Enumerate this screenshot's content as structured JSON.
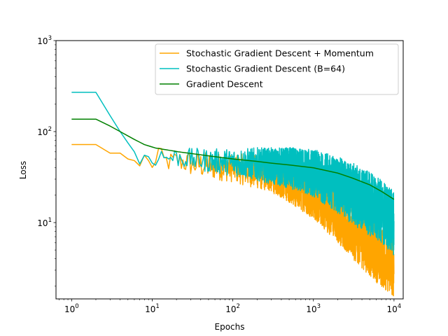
{
  "chart_data": {
    "type": "line",
    "xlabel": "Epochs",
    "ylabel": "Loss",
    "xscale": "log",
    "yscale": "log",
    "xlim": [
      0.64,
      13000
    ],
    "ylim": [
      1.45,
      1000
    ],
    "xticks": [
      {
        "value": 1,
        "base": "10",
        "exp": "0"
      },
      {
        "value": 10,
        "base": "10",
        "exp": "1"
      },
      {
        "value": 100,
        "base": "10",
        "exp": "2"
      },
      {
        "value": 1000,
        "base": "10",
        "exp": "3"
      },
      {
        "value": 10000,
        "base": "10",
        "exp": "4"
      }
    ],
    "yticks": [
      {
        "value": 10,
        "base": "10",
        "exp": "1"
      },
      {
        "value": 100,
        "base": "10",
        "exp": "2"
      },
      {
        "value": 1000,
        "base": "10",
        "exp": "3"
      }
    ],
    "grid": false,
    "legend_position": "top-right",
    "series": [
      {
        "name": "Stochastic Gradient Descent + Momentum",
        "color": "#ffa500",
        "points": [
          [
            0,
            72
          ],
          [
            1,
            72
          ],
          [
            2,
            58
          ],
          [
            3,
            58
          ],
          [
            4,
            50
          ],
          [
            5,
            48
          ],
          [
            6,
            42
          ],
          [
            7,
            55
          ],
          [
            8,
            48
          ],
          [
            9,
            38
          ],
          [
            10,
            50
          ],
          [
            11,
            62
          ],
          [
            12,
            52
          ],
          [
            13,
            48
          ],
          [
            15,
            46
          ],
          [
            20,
            48
          ],
          [
            30,
            44
          ],
          [
            50,
            42
          ],
          [
            100,
            40
          ],
          [
            200,
            36
          ],
          [
            300,
            34
          ],
          [
            500,
            28
          ],
          [
            1000,
            20
          ],
          [
            2000,
            12
          ],
          [
            3000,
            8.5
          ],
          [
            5000,
            5.5
          ],
          [
            7000,
            4.2
          ],
          [
            10000,
            3.3
          ]
        ],
        "noise_band": [
          [
            8,
            0.08
          ],
          [
            30,
            0.14
          ],
          [
            100,
            0.16
          ],
          [
            300,
            0.2
          ],
          [
            1000,
            0.26
          ],
          [
            3000,
            0.32
          ],
          [
            10000,
            0.34
          ]
        ]
      },
      {
        "name": "Stochastic Gradient Descent (B=64)",
        "color": "#00bfbf",
        "points": [
          [
            0,
            270
          ],
          [
            1,
            270
          ],
          [
            2,
            150
          ],
          [
            3,
            100
          ],
          [
            4,
            75
          ],
          [
            5,
            60
          ],
          [
            6,
            44
          ],
          [
            7,
            55
          ],
          [
            8,
            53
          ],
          [
            9,
            45
          ],
          [
            10,
            50
          ],
          [
            11,
            58
          ],
          [
            13,
            52
          ],
          [
            20,
            52
          ],
          [
            30,
            50
          ],
          [
            50,
            48
          ],
          [
            100,
            46
          ],
          [
            200,
            44
          ],
          [
            300,
            42
          ],
          [
            500,
            40
          ],
          [
            1000,
            35
          ],
          [
            2000,
            26
          ],
          [
            3000,
            21
          ],
          [
            5000,
            16
          ],
          [
            7000,
            13
          ],
          [
            10000,
            10
          ]
        ],
        "noise_band": [
          [
            8,
            0.08
          ],
          [
            30,
            0.12
          ],
          [
            100,
            0.15
          ],
          [
            300,
            0.2
          ],
          [
            1000,
            0.26
          ],
          [
            3000,
            0.34
          ],
          [
            10000,
            0.36
          ]
        ]
      },
      {
        "name": "Gradient Descent",
        "color": "#008000",
        "points": [
          [
            0,
            137
          ],
          [
            1,
            137
          ],
          [
            2,
            115
          ],
          [
            3,
            100
          ],
          [
            5,
            82
          ],
          [
            7,
            72
          ],
          [
            10,
            66
          ],
          [
            20,
            60
          ],
          [
            50,
            54
          ],
          [
            100,
            50
          ],
          [
            200,
            47
          ],
          [
            300,
            45
          ],
          [
            500,
            43
          ],
          [
            1000,
            40
          ],
          [
            2000,
            35
          ],
          [
            3000,
            31
          ],
          [
            5000,
            26
          ],
          [
            7000,
            22
          ],
          [
            10000,
            18
          ]
        ]
      }
    ]
  }
}
